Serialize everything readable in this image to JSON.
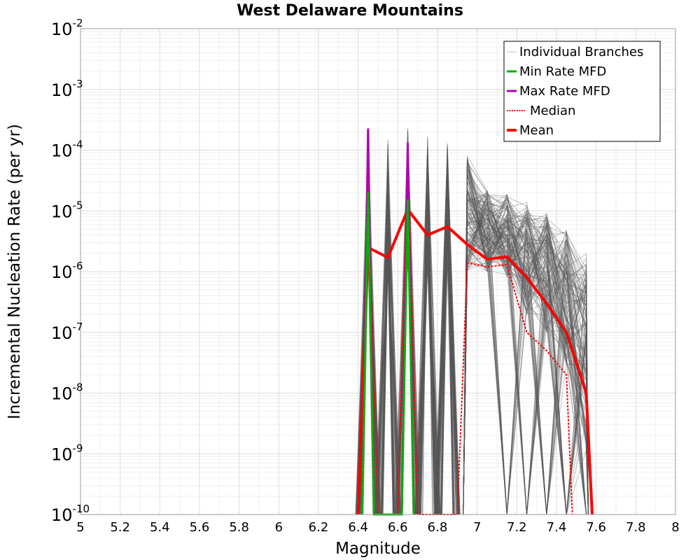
{
  "chart_data": {
    "type": "line",
    "title": "West Delaware Mountains",
    "xlabel": "Magnitude",
    "ylabel": "Incremental Nucleation Rate (per yr)",
    "xlim": [
      5,
      8
    ],
    "ylim": [
      1e-10,
      0.01
    ],
    "yscale": "log",
    "grid": true,
    "legend_position": "top-right",
    "x_ticks": [
      "5",
      "5.2",
      "5.4",
      "5.6",
      "5.8",
      "6",
      "6.2",
      "6.4",
      "6.6",
      "6.8",
      "7",
      "7.2",
      "7.4",
      "7.6",
      "7.8",
      "8"
    ],
    "y_ticks": [
      {
        "base": "10",
        "exp": "-10",
        "value": 1e-10
      },
      {
        "base": "10",
        "exp": "-9",
        "value": 1e-09
      },
      {
        "base": "10",
        "exp": "-8",
        "value": 1e-08
      },
      {
        "base": "10",
        "exp": "-7",
        "value": 1e-07
      },
      {
        "base": "10",
        "exp": "-6",
        "value": 1e-06
      },
      {
        "base": "10",
        "exp": "-5",
        "value": 1e-05
      },
      {
        "base": "10",
        "exp": "-4",
        "value": 0.0001
      },
      {
        "base": "10",
        "exp": "-3",
        "value": 0.001
      },
      {
        "base": "10",
        "exp": "-2",
        "value": 0.01
      }
    ],
    "legend": [
      {
        "label": "Individual Branches",
        "color": "#bdbdbd",
        "style": "thin"
      },
      {
        "label": "Min Rate MFD",
        "color": "#00b000",
        "style": "solid"
      },
      {
        "label": "Max Rate MFD",
        "color": "#b000b0",
        "style": "solid"
      },
      {
        "label": "Median",
        "color": "#ff0000",
        "style": "dotted"
      },
      {
        "label": "Mean",
        "color": "#ff0000",
        "style": "thick"
      }
    ],
    "series": [
      {
        "name": "Mean",
        "color": "#ff0000",
        "x": [
          6.4,
          6.45,
          6.55,
          6.65,
          6.75,
          6.85,
          6.95,
          7.05,
          7.15,
          7.25,
          7.35,
          7.45,
          7.55,
          7.58
        ],
        "y": [
          1e-10,
          2.5e-06,
          1.7e-06,
          1.05e-05,
          4e-06,
          5.5e-06,
          2.8e-06,
          1.6e-06,
          1.75e-06,
          8e-07,
          3e-07,
          1e-07,
          1e-08,
          1e-10
        ]
      },
      {
        "name": "Median",
        "color": "#ff0000",
        "x": [
          6.4,
          6.45,
          6.5,
          6.6,
          6.65,
          6.7,
          6.9,
          6.95,
          7.05,
          7.15,
          7.25,
          7.35,
          7.45,
          7.48
        ],
        "y": [
          1e-10,
          2e-05,
          1e-10,
          1e-10,
          0.00012,
          1e-10,
          1e-10,
          1.4e-06,
          1.2e-06,
          1.3e-06,
          1e-07,
          5e-08,
          2e-08,
          1e-10
        ]
      },
      {
        "name": "Max Rate MFD",
        "color": "#b000b0",
        "x": [
          6.42,
          6.45,
          6.48,
          6.62,
          6.65,
          6.68
        ],
        "y": [
          1e-10,
          0.00022,
          1e-10,
          1e-10,
          0.00013,
          1e-10
        ]
      },
      {
        "name": "Min Rate MFD",
        "color": "#00b000",
        "x": [
          6.42,
          6.45,
          6.48,
          6.62,
          6.65,
          6.68
        ],
        "y": [
          1e-10,
          2e-05,
          1e-10,
          1e-10,
          1.5e-05,
          1e-10
        ]
      }
    ],
    "branch_spikes": [
      {
        "x": 6.45,
        "peak": 0.0002
      },
      {
        "x": 6.55,
        "peak": 0.00015
      },
      {
        "x": 6.65,
        "peak": 0.00024
      },
      {
        "x": 6.75,
        "peak": 0.00017
      },
      {
        "x": 6.85,
        "peak": 0.00014
      }
    ],
    "branch_tail": {
      "x": [
        6.95,
        7.05,
        7.15,
        7.25,
        7.35,
        7.45,
        7.55
      ],
      "max": [
        8e-05,
        2.2e-05,
        1.9e-05,
        1.4e-05,
        1e-05,
        5e-06,
        2.2e-06
      ],
      "min": [
        1e-06,
        1e-06,
        8e-07,
        2e-07,
        1e-07,
        3e-08,
        1e-09
      ]
    }
  }
}
